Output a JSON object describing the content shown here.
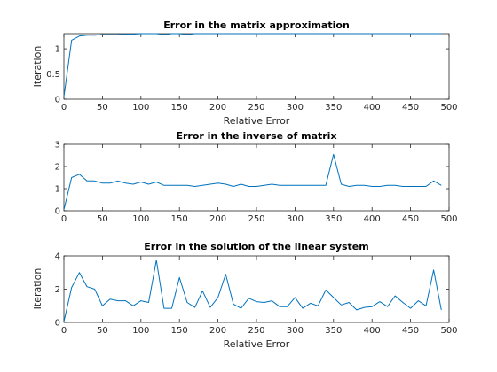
{
  "figure": {
    "background": "#ffffff",
    "axis_color": "#262626",
    "line_color": "#0072bd"
  },
  "chart_data": [
    {
      "type": "line",
      "title": "Error in the matrix approximation",
      "xlabel": "Relative Error",
      "ylabel": "Iteration",
      "xlim": [
        0,
        500
      ],
      "ylim": [
        0,
        1.3
      ],
      "grid": false,
      "xticks": [
        "0",
        "50",
        "100",
        "150",
        "200",
        "250",
        "300",
        "350",
        "400",
        "450",
        "500"
      ],
      "yticks": [
        "0",
        "0.5",
        "1"
      ],
      "ytick_values": [
        0,
        0.5,
        1
      ],
      "series": [
        {
          "x": [
            0,
            10,
            20,
            30,
            40,
            50,
            60,
            70,
            80,
            90,
            100,
            110,
            120,
            130,
            140,
            150,
            160,
            170,
            180,
            190,
            200,
            210,
            220,
            230,
            240,
            250,
            260,
            270,
            280,
            290,
            300,
            310,
            320,
            330,
            340,
            350,
            360,
            370,
            380,
            390,
            400,
            410,
            420,
            430,
            440,
            450,
            460,
            470,
            480,
            490
          ],
          "values": [
            0.05,
            1.17,
            1.25,
            1.27,
            1.27,
            1.28,
            1.28,
            1.28,
            1.29,
            1.29,
            1.3,
            1.3,
            1.3,
            1.28,
            1.3,
            1.3,
            1.28,
            1.3,
            1.3,
            1.3,
            1.3,
            1.3,
            1.3,
            1.3,
            1.3,
            1.3,
            1.3,
            1.3,
            1.3,
            1.3,
            1.3,
            1.3,
            1.3,
            1.3,
            1.3,
            1.3,
            1.3,
            1.3,
            1.3,
            1.3,
            1.3,
            1.3,
            1.3,
            1.3,
            1.3,
            1.3,
            1.3,
            1.3,
            1.3,
            1.3
          ]
        }
      ]
    },
    {
      "type": "line",
      "title": "Error in the inverse of matrix",
      "xlabel": "",
      "ylabel": "",
      "xlim": [
        0,
        500
      ],
      "ylim": [
        0,
        3
      ],
      "grid": false,
      "xticks": [
        "0",
        "50",
        "100",
        "150",
        "200",
        "250",
        "300",
        "350",
        "400",
        "450",
        "500"
      ],
      "yticks": [
        "0",
        "1",
        "2",
        "3"
      ],
      "ytick_values": [
        0,
        1,
        2,
        3
      ],
      "series": [
        {
          "x": [
            0,
            10,
            20,
            30,
            40,
            50,
            60,
            70,
            80,
            90,
            100,
            110,
            120,
            130,
            140,
            150,
            160,
            170,
            180,
            190,
            200,
            210,
            220,
            230,
            240,
            250,
            260,
            270,
            280,
            290,
            300,
            310,
            320,
            330,
            340,
            350,
            360,
            370,
            380,
            390,
            400,
            410,
            420,
            430,
            440,
            450,
            460,
            470,
            480,
            490
          ],
          "values": [
            0.05,
            1.5,
            1.65,
            1.35,
            1.35,
            1.25,
            1.25,
            1.35,
            1.25,
            1.2,
            1.3,
            1.2,
            1.3,
            1.15,
            1.15,
            1.15,
            1.15,
            1.1,
            1.15,
            1.2,
            1.25,
            1.2,
            1.1,
            1.2,
            1.1,
            1.1,
            1.15,
            1.2,
            1.15,
            1.15,
            1.15,
            1.15,
            1.15,
            1.15,
            1.15,
            2.55,
            1.2,
            1.1,
            1.15,
            1.15,
            1.1,
            1.1,
            1.15,
            1.15,
            1.1,
            1.1,
            1.1,
            1.1,
            1.35,
            1.15
          ]
        }
      ]
    },
    {
      "type": "line",
      "title": "Error in the solution of the linear system",
      "xlabel": "Relative Error",
      "ylabel": "Iteration",
      "xlim": [
        0,
        500
      ],
      "ylim": [
        0,
        4
      ],
      "grid": false,
      "xticks": [
        "0",
        "50",
        "100",
        "150",
        "200",
        "250",
        "300",
        "350",
        "400",
        "450",
        "500"
      ],
      "yticks": [
        "0",
        "2",
        "4"
      ],
      "ytick_values": [
        0,
        2,
        4
      ],
      "series": [
        {
          "x": [
            0,
            10,
            20,
            30,
            40,
            50,
            60,
            70,
            80,
            90,
            100,
            110,
            120,
            130,
            140,
            150,
            160,
            170,
            180,
            190,
            200,
            210,
            220,
            230,
            240,
            250,
            260,
            270,
            280,
            290,
            300,
            310,
            320,
            330,
            340,
            350,
            360,
            370,
            380,
            390,
            400,
            410,
            420,
            430,
            440,
            450,
            460,
            470,
            480,
            490
          ],
          "values": [
            0.05,
            2.1,
            3.0,
            2.15,
            2.0,
            1.0,
            1.4,
            1.3,
            1.3,
            1.0,
            1.3,
            1.2,
            3.75,
            0.85,
            0.85,
            2.7,
            1.2,
            0.9,
            1.9,
            0.9,
            1.5,
            2.9,
            1.1,
            0.85,
            1.45,
            1.25,
            1.2,
            1.3,
            0.95,
            0.95,
            1.5,
            0.85,
            1.15,
            1.0,
            1.95,
            1.5,
            1.05,
            1.2,
            0.75,
            0.9,
            0.95,
            1.25,
            0.95,
            1.6,
            1.2,
            0.85,
            1.3,
            1.0,
            3.15,
            0.75
          ]
        }
      ]
    }
  ]
}
